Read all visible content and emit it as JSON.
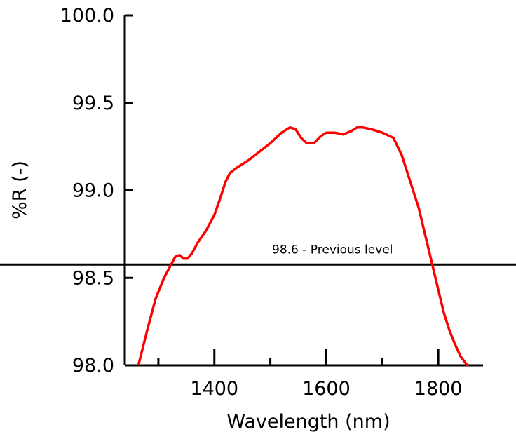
{
  "chart_data": {
    "type": "line",
    "title": "",
    "xlabel": "Wavelength (nm)",
    "ylabel": "%R (-)",
    "xlim": [
      1240,
      1880
    ],
    "ylim": [
      98.0,
      100.0
    ],
    "x_ticks": [
      1400,
      1600,
      1800
    ],
    "x_minor_ticks": [
      1300,
      1500,
      1700
    ],
    "y_ticks": [
      "98.0",
      "98.5",
      "99.0",
      "99.5",
      "100.0"
    ],
    "grid": false,
    "legend": "none",
    "series": [
      {
        "color": "#ff0000",
        "x": [
          1265,
          1280,
          1295,
          1310,
          1320,
          1330,
          1338,
          1345,
          1352,
          1360,
          1370,
          1385,
          1400,
          1410,
          1420,
          1428,
          1440,
          1460,
          1480,
          1500,
          1520,
          1535,
          1545,
          1555,
          1565,
          1578,
          1590,
          1600,
          1615,
          1630,
          1645,
          1655,
          1665,
          1680,
          1700,
          1720,
          1735,
          1750,
          1765,
          1780,
          1795,
          1810,
          1820,
          1830,
          1840,
          1852
        ],
        "y": [
          98.01,
          98.2,
          98.38,
          98.5,
          98.56,
          98.62,
          98.63,
          98.61,
          98.61,
          98.64,
          98.7,
          98.77,
          98.86,
          98.95,
          99.05,
          99.1,
          99.13,
          99.17,
          99.22,
          99.27,
          99.33,
          99.36,
          99.35,
          99.3,
          99.27,
          99.27,
          99.31,
          99.33,
          99.33,
          99.32,
          99.34,
          99.36,
          99.36,
          99.35,
          99.33,
          99.3,
          99.2,
          99.05,
          98.9,
          98.7,
          98.5,
          98.3,
          98.2,
          98.12,
          98.05,
          98.0
        ]
      }
    ],
    "reference_line": {
      "y": 98.6,
      "label": "98.6 - Previous level",
      "color": "#000000"
    }
  }
}
